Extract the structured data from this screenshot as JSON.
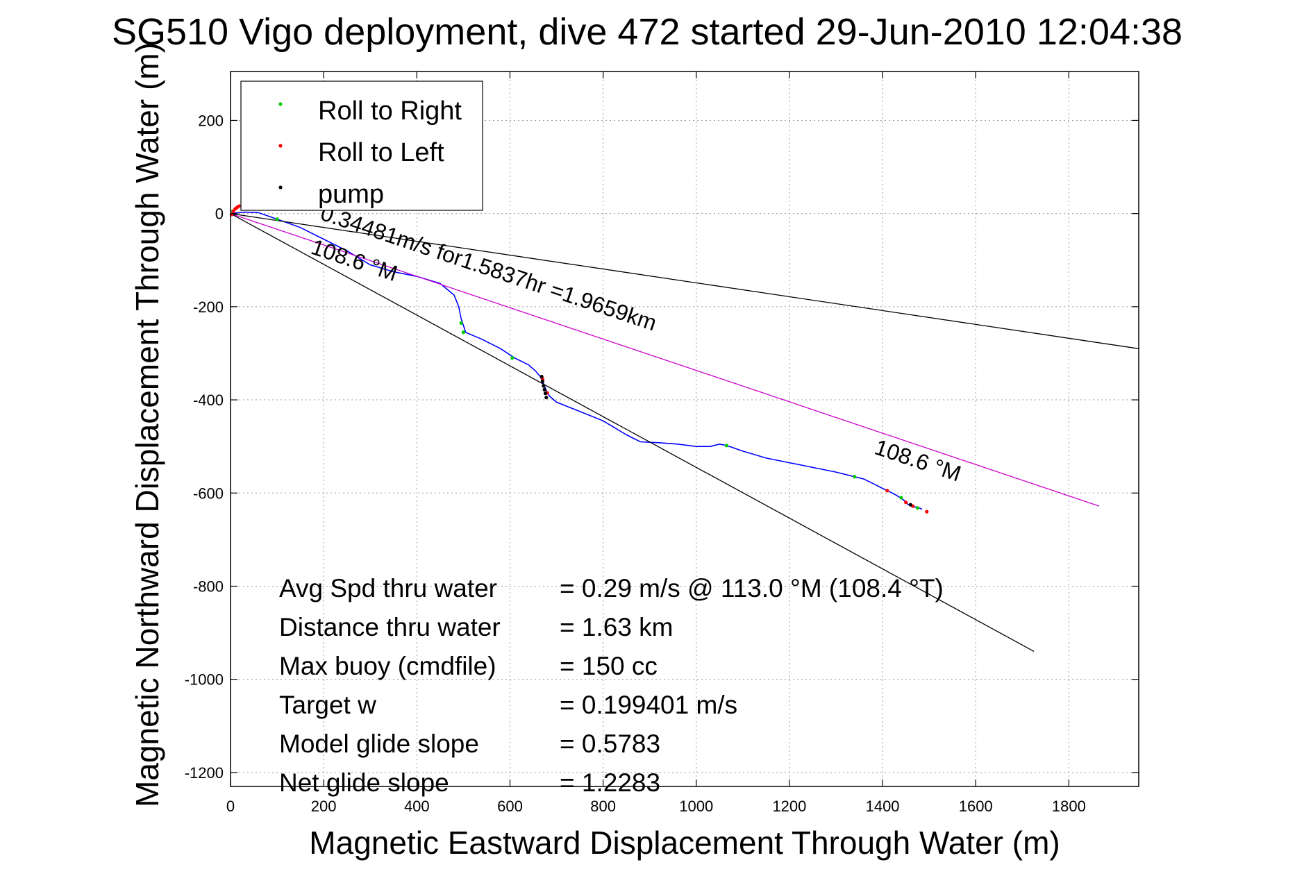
{
  "chart_data": {
    "type": "line",
    "title": "SG510 Vigo deployment, dive 472 started 29-Jun-2010 12:04:38",
    "xlabel": "Magnetic Eastward Displacement Through Water (m)",
    "ylabel": "Magnetic Northward Displacement Through Water (m)",
    "xlim": [
      0,
      1950
    ],
    "ylim": [
      -1230,
      305
    ],
    "xticks": [
      0,
      200,
      400,
      600,
      800,
      1000,
      1200,
      1400,
      1600,
      1800
    ],
    "yticks": [
      -1200,
      -1000,
      -800,
      -600,
      -400,
      -200,
      0,
      200
    ],
    "grid": true,
    "legend_position": "top-left",
    "legend": [
      {
        "label": "Roll to Right",
        "color": "#00cc00"
      },
      {
        "label": "Roll to Left",
        "color": "#ff0000"
      },
      {
        "label": "pump",
        "color": "#000000"
      }
    ],
    "series": [
      {
        "color": "#0000ff",
        "style": "track",
        "x": [
          0,
          30,
          60,
          100,
          150,
          200,
          250,
          300,
          350,
          400,
          450,
          480,
          490,
          495,
          500,
          505,
          540,
          580,
          610,
          640,
          655,
          665,
          672,
          678,
          685,
          700,
          750,
          800,
          850,
          880,
          920,
          960,
          1000,
          1030,
          1050,
          1065,
          1100,
          1150,
          1200,
          1250,
          1300,
          1340,
          1360,
          1380,
          1400,
          1415,
          1430,
          1445,
          1455,
          1465,
          1475,
          1485
        ],
        "y": [
          0,
          3,
          2,
          -12,
          -30,
          -55,
          -80,
          -110,
          -125,
          -135,
          -150,
          -175,
          -200,
          -225,
          -240,
          -255,
          -270,
          -290,
          -310,
          -325,
          -338,
          -350,
          -365,
          -380,
          -392,
          -405,
          -425,
          -445,
          -475,
          -490,
          -492,
          -495,
          -500,
          -500,
          -495,
          -498,
          -510,
          -525,
          -535,
          -545,
          -555,
          -565,
          -570,
          -580,
          -590,
          -597,
          -605,
          -615,
          -625,
          -630,
          -630,
          -635
        ]
      },
      {
        "color": "#cc00cc",
        "style": "line",
        "x": [
          0,
          1865
        ],
        "y": [
          0,
          -628
        ]
      },
      {
        "color": "#000000",
        "style": "line",
        "x": [
          0,
          1950
        ],
        "y": [
          0,
          -290
        ]
      },
      {
        "color": "#000000",
        "style": "line",
        "x": [
          0,
          1725
        ],
        "y": [
          0,
          -940
        ]
      }
    ],
    "markers": {
      "roll_right": {
        "color": "#00cc00",
        "x": [
          5,
          100,
          495,
          500,
          605,
          1065,
          1340,
          1440,
          1475
        ],
        "y": [
          5,
          -12,
          -235,
          -255,
          -310,
          -498,
          -565,
          -610,
          -632
        ]
      },
      "roll_left": {
        "color": "#ff0000",
        "x": [
          2,
          6,
          10,
          14,
          18,
          670,
          680,
          1410,
          1450,
          1465,
          1495
        ],
        "y": [
          -2,
          5,
          10,
          13,
          16,
          -355,
          -385,
          -595,
          -620,
          -628,
          -640
        ]
      },
      "pump": {
        "color": "#000000",
        "x": [
          668,
          670,
          672,
          674,
          676,
          678,
          1460
        ],
        "y": [
          -350,
          -360,
          -370,
          -378,
          -386,
          -395,
          -625
        ]
      }
    },
    "annotations": [
      {
        "text": "0.34481m/s for1.5837hr =1.9659km",
        "x": 190,
        "y": -12,
        "angle_deg": 18.5
      },
      {
        "text": "108.6 °M",
        "x": 170,
        "y": -85,
        "angle_deg": 18.5
      },
      {
        "text": "108.6 °M",
        "x": 1380,
        "y": -515,
        "angle_deg": 18.5
      }
    ],
    "stats": [
      {
        "label": "Avg Spd thru water",
        "value": "=  0.29 m/s @ 113.0 °M (108.4 °T)"
      },
      {
        "label": "Distance thru water",
        "value": "=  1.63 km"
      },
      {
        "label": "Max buoy (cmdfile)",
        "value": "= 150 cc"
      },
      {
        "label": "Target w",
        "value": "= 0.199401 m/s"
      },
      {
        "label": "Model glide slope",
        "value": "= 0.5783"
      },
      {
        "label": "Net glide slope",
        "value": "= 1.2283"
      }
    ]
  }
}
